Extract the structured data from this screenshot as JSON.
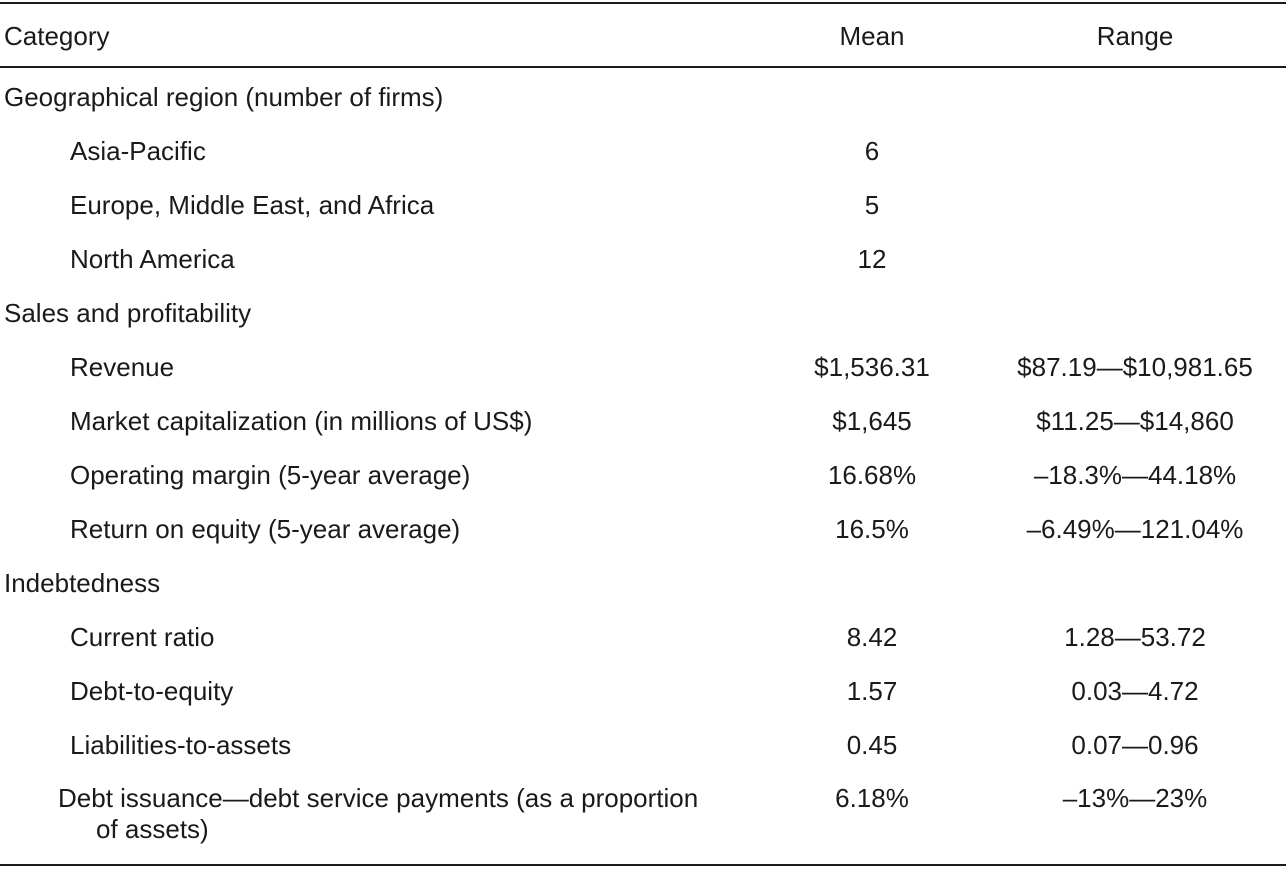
{
  "table": {
    "headers": {
      "category": "Category",
      "mean": "Mean",
      "range": "Range"
    },
    "sections": [
      {
        "title": "Geographical region (number of firms)",
        "rows": [
          {
            "category": "Asia-Pacific",
            "mean": "6",
            "range": ""
          },
          {
            "category": "Europe, Middle East, and Africa",
            "mean": "5",
            "range": ""
          },
          {
            "category": "North America",
            "mean": "12",
            "range": ""
          }
        ]
      },
      {
        "title": "Sales and profitability",
        "rows": [
          {
            "category": "Revenue",
            "mean": "$1,536.31",
            "range": "$87.19—$10,981.65"
          },
          {
            "category": "Market capitalization (in millions of US$)",
            "mean": "$1,645",
            "range": "$11.25—$14,860"
          },
          {
            "category": "Operating margin (5-year average)",
            "mean": "16.68%",
            "range": "–18.3%—44.18%"
          },
          {
            "category": "Return on equity (5-year average)",
            "mean": "16.5%",
            "range": "–6.49%—121.04%"
          }
        ]
      },
      {
        "title": "Indebtedness",
        "rows": [
          {
            "category": "Current ratio",
            "mean": "8.42",
            "range": "1.28—53.72"
          },
          {
            "category": "Debt-to-equity",
            "mean": "1.57",
            "range": "0.03—4.72"
          },
          {
            "category": "Liabilities-to-assets",
            "mean": "0.45",
            "range": "0.07—0.96"
          },
          {
            "category_line1": "Debt issuance—debt service payments (as a proportion",
            "category_line2": "of assets)",
            "mean": "6.18%",
            "range": "–13%—23%"
          }
        ]
      }
    ]
  }
}
